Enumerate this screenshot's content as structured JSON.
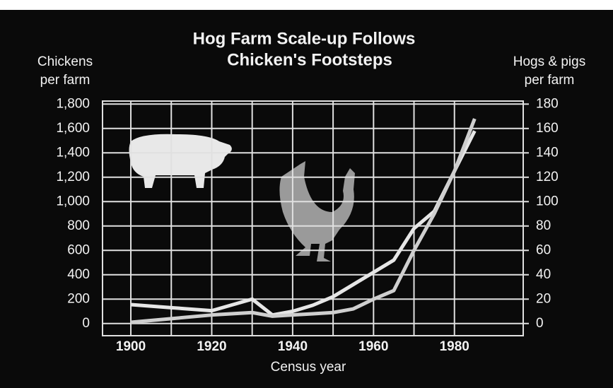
{
  "chart_data": {
    "type": "line",
    "title": [
      "Hog Farm Scale-up Follows",
      "Chicken's Footsteps"
    ],
    "y_label": [
      "Chickens",
      "per farm"
    ],
    "y2_label": [
      "Hogs & pigs",
      "per farm"
    ],
    "x_label": "Census year",
    "x": [
      1900,
      1910,
      1920,
      1930,
      1935,
      1940,
      1945,
      1950,
      1955,
      1960,
      1965,
      1970,
      1975,
      1980,
      1985
    ],
    "series": [
      {
        "color": "#e6e6e6",
        "values": [
          155,
          130,
          105,
          200,
          70,
          100,
          150,
          220,
          320,
          420,
          520,
          780,
          920,
          1250,
          1580
        ]
      },
      {
        "color": "#cfcfcf",
        "axis": "y2",
        "values": [
          1,
          4,
          7,
          9,
          6,
          7,
          8,
          9,
          12,
          20,
          27,
          60,
          90,
          125,
          168
        ]
      }
    ],
    "xlim": [
      1893,
      1997
    ],
    "xticks": [
      1900,
      1920,
      1940,
      1960,
      1980
    ],
    "ylim": [
      -100,
      1825
    ],
    "yticks": [
      0,
      200,
      400,
      600,
      800,
      {
        "value": 1000,
        "label": "1,000"
      },
      {
        "value": 1200,
        "label": "1,200"
      },
      {
        "value": 1400,
        "label": "1,400"
      },
      {
        "value": 1600,
        "label": "1,600"
      },
      {
        "value": 1800,
        "label": "1,800"
      }
    ],
    "y2lim": [
      -10,
      182.5
    ],
    "y2ticks": [
      0,
      20,
      40,
      60,
      80,
      100,
      120,
      140,
      160,
      180
    ],
    "grid": true
  }
}
